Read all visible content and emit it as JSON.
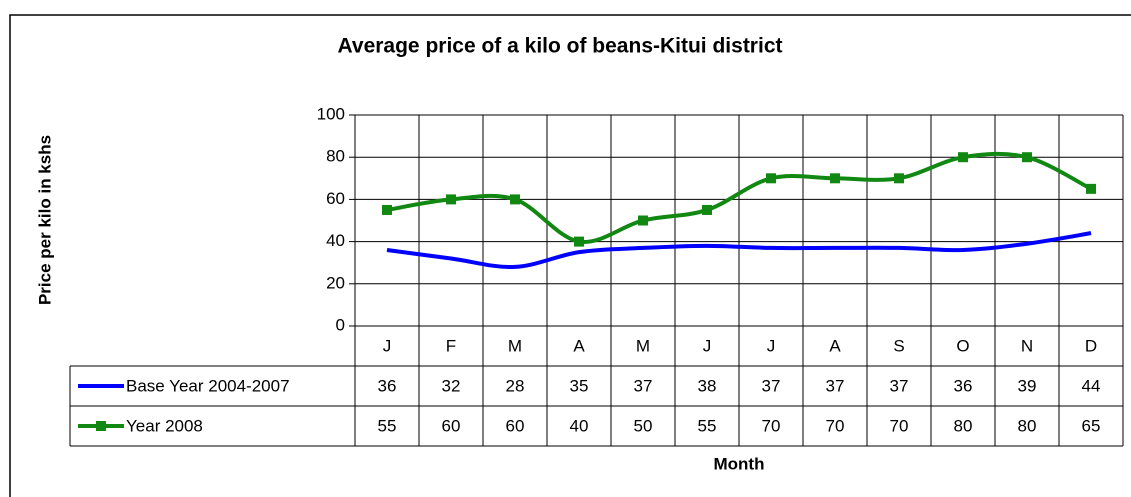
{
  "chart_data": {
    "type": "line",
    "title": "Average price of a kilo of beans-Kitui district",
    "y_label": "Price per kilo in kshs",
    "x_label": "Month",
    "categories": [
      "J",
      "F",
      "M",
      "A",
      "M",
      "J",
      "J",
      "A",
      "S",
      "O",
      "N",
      "D"
    ],
    "series": [
      {
        "name": "Base Year 2004-2007",
        "color": "#0000ff",
        "values": [
          36,
          32,
          28,
          35,
          37,
          38,
          37,
          37,
          37,
          36,
          39,
          44
        ]
      },
      {
        "name": "Year 2008",
        "color": "#118811",
        "marker": "square",
        "values": [
          55,
          60,
          60,
          40,
          50,
          55,
          70,
          70,
          70,
          80,
          80,
          65
        ]
      }
    ],
    "ylim": [
      0,
      100
    ],
    "yticks": [
      0,
      20,
      40,
      60,
      80,
      100
    ],
    "grid": true,
    "data_table": true
  }
}
